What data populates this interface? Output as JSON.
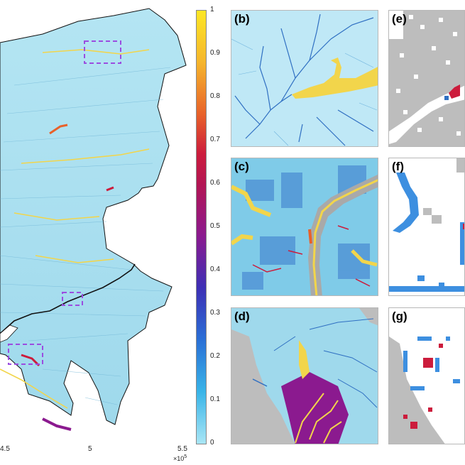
{
  "main_map": {
    "x_ticks": [
      "4.5",
      "5",
      "5.5"
    ],
    "x_exponent_base": "×10",
    "x_exponent_power": "5"
  },
  "colorbar": {
    "ticks": [
      "1",
      "0.9",
      "0.8",
      "0.7",
      "0.6",
      "0.5",
      "0.4",
      "0.3",
      "0.2",
      "0.1",
      "0"
    ],
    "colors": [
      "#fde725",
      "#f5b52c",
      "#e8612a",
      "#cc1c3c",
      "#8b1a8f",
      "#3d2fb5",
      "#2a6fd6",
      "#38b4e8",
      "#8ee0f2"
    ]
  },
  "panels": {
    "b": {
      "label": "(b)"
    },
    "c": {
      "label": "(c)"
    },
    "d": {
      "label": "(d)"
    },
    "e": {
      "label": "(e)"
    },
    "f": {
      "label": "(f)"
    },
    "g": {
      "label": "(g)"
    }
  },
  "colors": {
    "land": "#a9dff0",
    "river_yellow": "#f2d54b",
    "stream_blue": "#2f6fc2",
    "masked_gray": "#bdbdbd",
    "highlight_box": "#9b4de0",
    "boundary": "#111111"
  }
}
